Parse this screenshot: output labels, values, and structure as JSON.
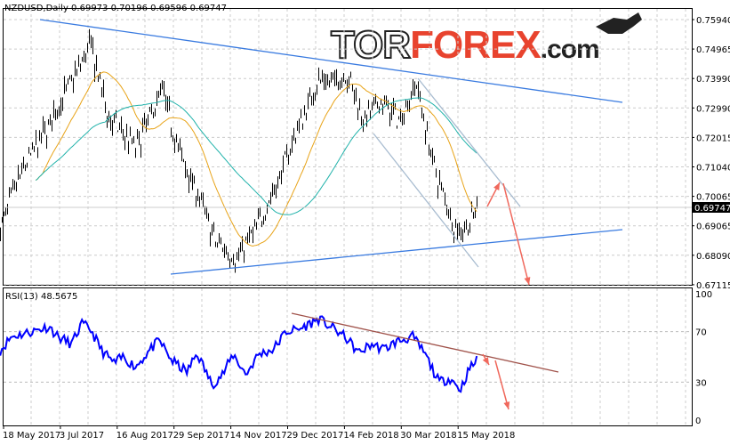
{
  "header": {
    "symbol_line": "NZDUSD,Daily  0.69973 0.70196 0.69596 0.69747"
  },
  "logo": {
    "tor": "TOR",
    "forex": "FOREX",
    "com": ".com"
  },
  "colors": {
    "candles": "#000000",
    "ma_fast": "#e8a317",
    "ma_slow": "#20b2aa",
    "trend": "#3a7be0",
    "channel": "#a8bcd0",
    "arrows": "#f0685c",
    "rsi": "#0000ff",
    "rsi_trend": "#a0524a",
    "last_price_bg": "#000000"
  },
  "chart_data": [
    {
      "type": "candlestick",
      "title": "NZDUSD,Daily",
      "ohlc_last": {
        "open": 0.69973,
        "high": 0.70196,
        "low": 0.69596,
        "close": 0.69747
      },
      "last_price_label": "0.69747",
      "y_ticks": [
        "0.75940",
        "0.74965",
        "0.73990",
        "0.72990",
        "0.72015",
        "0.71040",
        "0.70065",
        "0.69065",
        "0.68090",
        "0.67115"
      ],
      "ylim": [
        0.67115,
        0.7635
      ],
      "x_ticks": [
        "18 May 2017",
        "3 Jul 2017",
        "16 Aug 2017",
        "29 Sep 2017",
        "14 Nov 2017",
        "29 Dec 2017",
        "14 Feb 2018",
        "30 Mar 2018",
        "15 May 2018"
      ],
      "close_path": [
        [
          "2017-05-16",
          0.69
        ],
        [
          "2017-06-03",
          0.71
        ],
        [
          "2017-06-24",
          0.7246
        ],
        [
          "2017-07-27",
          0.751
        ],
        [
          "2017-08-10",
          0.727
        ],
        [
          "2017-09-01",
          0.717
        ],
        [
          "2017-09-22",
          0.736
        ],
        [
          "2017-10-06",
          0.715
        ],
        [
          "2017-10-24",
          0.698
        ],
        [
          "2017-11-03",
          0.686
        ],
        [
          "2017-11-21",
          0.68
        ],
        [
          "2017-12-08",
          0.692
        ],
        [
          "2017-12-22",
          0.704
        ],
        [
          "2018-01-05",
          0.72
        ],
        [
          "2018-01-24",
          0.739
        ],
        [
          "2018-02-06",
          0.738
        ],
        [
          "2018-02-16",
          0.742
        ],
        [
          "2018-03-02",
          0.726
        ],
        [
          "2018-03-16",
          0.732
        ],
        [
          "2018-03-30",
          0.726
        ],
        [
          "2018-04-13",
          0.738
        ],
        [
          "2018-04-27",
          0.71
        ],
        [
          "2018-05-15",
          0.689
        ],
        [
          "2018-05-25",
          0.691
        ],
        [
          "2018-06-01",
          0.69747
        ]
      ],
      "moving_averages": [
        "fast",
        "slow"
      ]
    },
    {
      "type": "line",
      "title": "RSI(13) 48.5675",
      "ylim": [
        0,
        100
      ],
      "y_ticks": [
        "100",
        "70",
        "30",
        "0"
      ],
      "values_path": [
        [
          "2017-05-16",
          55
        ],
        [
          "2017-05-25",
          66
        ],
        [
          "2017-06-10",
          70
        ],
        [
          "2017-06-24",
          74
        ],
        [
          "2017-07-01",
          66
        ],
        [
          "2017-07-12",
          60
        ],
        [
          "2017-07-20",
          76
        ],
        [
          "2017-07-27",
          72
        ],
        [
          "2017-08-05",
          55
        ],
        [
          "2017-08-15",
          45
        ],
        [
          "2017-08-22",
          50
        ],
        [
          "2017-09-01",
          42
        ],
        [
          "2017-09-12",
          55
        ],
        [
          "2017-09-20",
          63
        ],
        [
          "2017-09-30",
          47
        ],
        [
          "2017-10-12",
          38
        ],
        [
          "2017-10-20",
          53
        ],
        [
          "2017-11-01",
          28
        ],
        [
          "2017-11-10",
          37
        ],
        [
          "2017-11-18",
          52
        ],
        [
          "2017-11-28",
          36
        ],
        [
          "2017-12-08",
          52
        ],
        [
          "2017-12-20",
          56
        ],
        [
          "2017-12-30",
          70
        ],
        [
          "2018-01-10",
          72
        ],
        [
          "2018-01-25",
          80
        ],
        [
          "2018-02-05",
          73
        ],
        [
          "2018-02-16",
          65
        ],
        [
          "2018-02-26",
          53
        ],
        [
          "2018-03-08",
          60
        ],
        [
          "2018-03-18",
          56
        ],
        [
          "2018-03-28",
          62
        ],
        [
          "2018-04-10",
          66
        ],
        [
          "2018-04-20",
          52
        ],
        [
          "2018-05-01",
          30
        ],
        [
          "2018-05-10",
          33
        ],
        [
          "2018-05-18",
          24
        ],
        [
          "2018-05-25",
          40
        ],
        [
          "2018-06-01",
          48.5675
        ]
      ]
    }
  ]
}
